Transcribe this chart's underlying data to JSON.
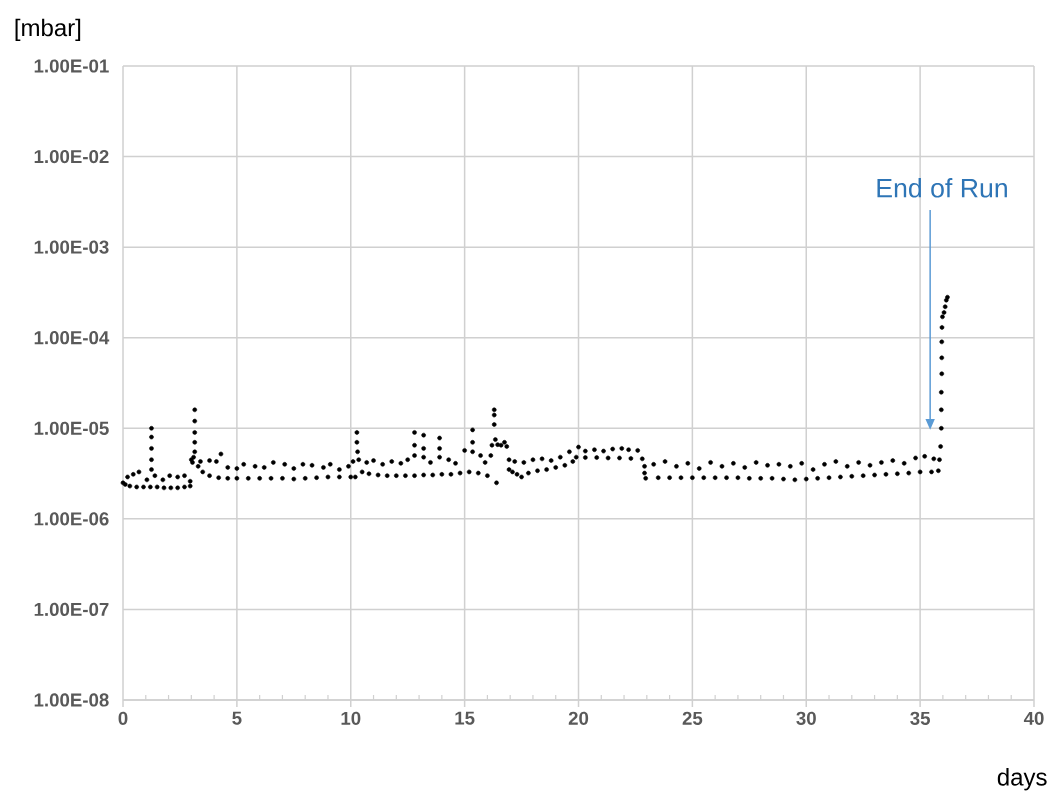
{
  "chart_data": {
    "type": "scatter",
    "xlabel": "days",
    "ylabel": "[mbar]",
    "color": "#000000",
    "marker": "circle",
    "log": "y",
    "grid": true,
    "xlim": [
      0,
      40
    ],
    "ylim": [
      1e-08,
      0.1
    ],
    "xticks": [
      0,
      {
        "value": 1,
        "label": null
      },
      {
        "value": 2,
        "label": null
      },
      {
        "value": 3,
        "label": null
      },
      {
        "value": 4,
        "label": null
      },
      5,
      {
        "value": 6,
        "label": null
      },
      {
        "value": 7,
        "label": null
      },
      {
        "value": 8,
        "label": null
      },
      {
        "value": 9,
        "label": null
      },
      10,
      {
        "value": 11,
        "label": null
      },
      {
        "value": 12,
        "label": null
      },
      {
        "value": 13,
        "label": null
      },
      {
        "value": 14,
        "label": null
      },
      15,
      {
        "value": 16,
        "label": null
      },
      {
        "value": 17,
        "label": null
      },
      {
        "value": 18,
        "label": null
      },
      {
        "value": 19,
        "label": null
      },
      20,
      {
        "value": 21,
        "label": null
      },
      {
        "value": 22,
        "label": null
      },
      {
        "value": 23,
        "label": null
      },
      {
        "value": 24,
        "label": null
      },
      25,
      {
        "value": 26,
        "label": null
      },
      {
        "value": 27,
        "label": null
      },
      {
        "value": 28,
        "label": null
      },
      {
        "value": 29,
        "label": null
      },
      30,
      {
        "value": 31,
        "label": null
      },
      {
        "value": 32,
        "label": null
      },
      {
        "value": 33,
        "label": null
      },
      {
        "value": 34,
        "label": null
      },
      35,
      {
        "value": 36,
        "label": null
      },
      {
        "value": 37,
        "label": null
      },
      {
        "value": 38,
        "label": null
      },
      {
        "value": 39,
        "label": null
      },
      40
    ],
    "yticks": [
      {
        "value": 1e-08,
        "label": "1.00E-08"
      },
      {
        "value": 1e-07,
        "label": "1.00E-07"
      },
      {
        "value": 1e-06,
        "label": "1.00E-06"
      },
      {
        "value": 1e-05,
        "label": "1.00E-05"
      },
      {
        "value": 0.0001,
        "label": "1.00E-04"
      },
      {
        "value": 0.001,
        "label": "1.00E-03"
      },
      {
        "value": 0.01,
        "label": "1.00E-02"
      },
      {
        "value": 0.1,
        "label": "1.00E-01"
      }
    ],
    "annotations": [
      "End of Run"
    ],
    "x": [
      0,
      0.1,
      0.3,
      0.6,
      0.9,
      1.2,
      1.5,
      1.8,
      2.1,
      2.4,
      2.7,
      2.95,
      1.25,
      1.25,
      1.25,
      1.25,
      1.25,
      0.2,
      0.45,
      0.7,
      1.05,
      1.4,
      1.75,
      2.05,
      2.4,
      2.7,
      2.95,
      3.0,
      3.05,
      3.1,
      3.15,
      3.15,
      3.15,
      3.15,
      3.15,
      3.3,
      3.5,
      3.8,
      4.2,
      4.6,
      5.0,
      5.5,
      6.0,
      6.5,
      7.0,
      7.5,
      8.0,
      8.5,
      9.0,
      9.5,
      10.0,
      10.2,
      3.4,
      3.8,
      4.1,
      4.3,
      4.6,
      5.0,
      5.3,
      5.8,
      6.2,
      6.6,
      7.1,
      7.5,
      7.9,
      8.3,
      8.8,
      9.1,
      9.5,
      9.9,
      10.1,
      10.27,
      10.27,
      10.3,
      10.35,
      10.5,
      10.8,
      11.2,
      11.6,
      12.0,
      12.4,
      12.8,
      13.2,
      13.6,
      14.0,
      14.4,
      14.8,
      15.2,
      15.6,
      16.0,
      12.8,
      12.8,
      12.8,
      13.2,
      13.2,
      13.2,
      13.9,
      13.9,
      13.9,
      15.35,
      15.35,
      15.35,
      15.0,
      15.7,
      10.7,
      11.0,
      11.4,
      11.8,
      12.2,
      12.5,
      13.5,
      14.3,
      14.6,
      15.9,
      16.15,
      16.2,
      16.3,
      16.3,
      16.3,
      16.35,
      16.4,
      16.45,
      16.6,
      16.75,
      16.85,
      16.95,
      16.95,
      17.1,
      17.3,
      17.5,
      17.8,
      18.2,
      18.6,
      19.0,
      19.4,
      19.75,
      17.2,
      17.6,
      18.0,
      18.4,
      18.8,
      19.2,
      19.6,
      19.9,
      20.3,
      20.8,
      21.3,
      21.8,
      22.3,
      22.8,
      20.0,
      20.3,
      20.7,
      21.1,
      21.5,
      21.9,
      22.2,
      22.6,
      22.9,
      22.9,
      22.95,
      23.5,
      24.0,
      24.5,
      25.0,
      25.5,
      26.0,
      26.5,
      27.0,
      27.5,
      28.0,
      28.5,
      29.0,
      29.5,
      30.0,
      30.5,
      31.0,
      31.5,
      32.0,
      32.5,
      33.0,
      33.5,
      34.0,
      34.5,
      35.0,
      35.5,
      35.8,
      23.3,
      23.8,
      24.3,
      24.8,
      25.3,
      25.8,
      26.3,
      26.8,
      27.3,
      27.8,
      28.3,
      28.8,
      29.3,
      29.8,
      30.3,
      30.8,
      31.3,
      31.8,
      32.3,
      32.8,
      33.3,
      33.8,
      34.3,
      34.8,
      35.2,
      35.6,
      35.85,
      35.9,
      35.93,
      35.93,
      35.93,
      35.95,
      35.95,
      35.95,
      35.96,
      35.98,
      36.05,
      36.1,
      36.15,
      36.2
    ],
    "values": [
      2.5e-06,
      2.4e-06,
      2.3e-06,
      2.25e-06,
      2.25e-06,
      2.25e-06,
      2.25e-06,
      2.2e-06,
      2.2e-06,
      2.2e-06,
      2.25e-06,
      2.3e-06,
      1e-05,
      8e-06,
      6e-06,
      4.5e-06,
      3.5e-06,
      2.9e-06,
      3.1e-06,
      3.3e-06,
      2.7e-06,
      3e-06,
      2.7e-06,
      3e-06,
      2.9e-06,
      3e-06,
      2.6e-06,
      4.5e-06,
      4.2e-06,
      4.8e-06,
      1.6e-05,
      1.2e-05,
      9e-06,
      7e-06,
      5.5e-06,
      3.8e-06,
      3.3e-06,
      3e-06,
      2.85e-06,
      2.8e-06,
      2.8e-06,
      2.8e-06,
      2.8e-06,
      2.8e-06,
      2.8e-06,
      2.75e-06,
      2.8e-06,
      2.85e-06,
      2.9e-06,
      2.9e-06,
      2.9e-06,
      2.9e-06,
      4.3e-06,
      4.4e-06,
      4.3e-06,
      5.2e-06,
      3.7e-06,
      3.6e-06,
      4e-06,
      3.8e-06,
      3.7e-06,
      4.2e-06,
      4e-06,
      3.6e-06,
      4e-06,
      3.9e-06,
      3.7e-06,
      4e-06,
      3.5e-06,
      3.8e-06,
      4.3e-06,
      9e-06,
      7e-06,
      5.5e-06,
      4.5e-06,
      3.3e-06,
      3.15e-06,
      3.05e-06,
      3e-06,
      3e-06,
      3e-06,
      3e-06,
      3.05e-06,
      3.05e-06,
      3.1e-06,
      3.1e-06,
      3.2e-06,
      3.3e-06,
      3.2e-06,
      3e-06,
      9e-06,
      6.5e-06,
      5e-06,
      8.4e-06,
      6e-06,
      4.8e-06,
      7.8e-06,
      6e-06,
      4.8e-06,
      9.6e-06,
      7e-06,
      5.5e-06,
      5.7e-06,
      5e-06,
      4.2e-06,
      4.4e-06,
      4e-06,
      4.3e-06,
      4.1e-06,
      4.5e-06,
      4.2e-06,
      4.5e-06,
      4.1e-06,
      4.2e-06,
      5e-06,
      6.5e-06,
      1.6e-05,
      1.4e-05,
      1.1e-05,
      7.5e-06,
      2.5e-06,
      6.6e-06,
      6.5e-06,
      7e-06,
      6.3e-06,
      4.5e-06,
      3.5e-06,
      3.3e-06,
      3.1e-06,
      2.9e-06,
      3.2e-06,
      3.4e-06,
      3.5e-06,
      3.7e-06,
      3.9e-06,
      4.3e-06,
      4.3e-06,
      4.2e-06,
      4.5e-06,
      4.6e-06,
      4.4e-06,
      4.8e-06,
      5.5e-06,
      4.8e-06,
      4.75e-06,
      4.75e-06,
      4.7e-06,
      4.7e-06,
      4.65e-06,
      4.6e-06,
      6.2e-06,
      5.6e-06,
      5.8e-06,
      5.6e-06,
      5.9e-06,
      6e-06,
      5.8e-06,
      5.7e-06,
      3.8e-06,
      3.2e-06,
      2.8e-06,
      2.85e-06,
      2.85e-06,
      2.85e-06,
      2.85e-06,
      2.85e-06,
      2.85e-06,
      2.85e-06,
      2.85e-06,
      2.8e-06,
      2.8e-06,
      2.8e-06,
      2.75e-06,
      2.7e-06,
      2.75e-06,
      2.8e-06,
      2.85e-06,
      2.9e-06,
      2.95e-06,
      3e-06,
      3.05e-06,
      3.1e-06,
      3.15e-06,
      3.2e-06,
      3.3e-06,
      3.3e-06,
      3.4e-06,
      4e-06,
      4.3e-06,
      3.8e-06,
      4.1e-06,
      3.6e-06,
      4.2e-06,
      3.8e-06,
      4.1e-06,
      3.7e-06,
      4.2e-06,
      3.9e-06,
      4e-06,
      3.8e-06,
      4.1e-06,
      3.5e-06,
      4e-06,
      4.3e-06,
      3.8e-06,
      4.2e-06,
      3.9e-06,
      4.2e-06,
      4.4e-06,
      4.1e-06,
      4.7e-06,
      4.9e-06,
      4.6e-06,
      4.5e-06,
      6.3e-06,
      1e-05,
      1.6e-05,
      2.5e-05,
      4e-05,
      6e-05,
      9e-05,
      0.00013,
      0.00017,
      0.00019,
      0.00022,
      0.00026,
      0.00028
    ]
  }
}
